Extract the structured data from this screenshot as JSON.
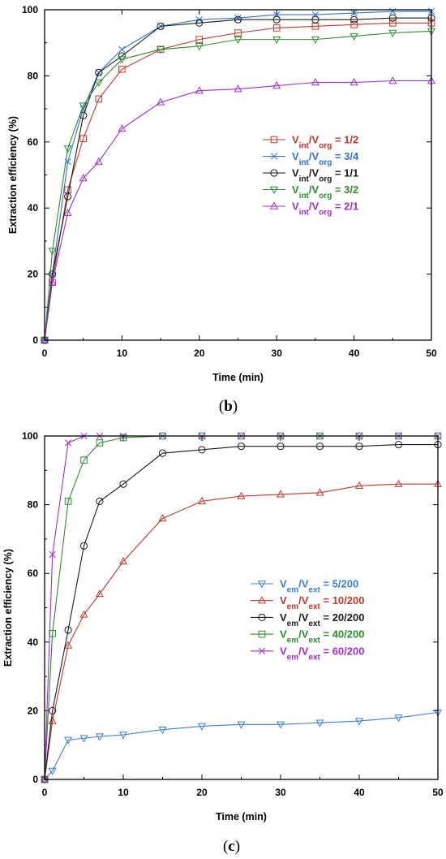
{
  "chart_data": [
    {
      "type": "line",
      "caption": "(b)",
      "xlabel": "Time (min)",
      "ylabel": "Extraction efficiency (%)",
      "xlim": [
        0,
        50
      ],
      "ylim": [
        0,
        100
      ],
      "xticks": [
        "0",
        "10",
        "20",
        "30",
        "40",
        "50"
      ],
      "yticks": [
        "0",
        "20",
        "40",
        "60",
        "80",
        "100"
      ],
      "legend_position": "center-right",
      "x": [
        0,
        1,
        3,
        5,
        7,
        10,
        15,
        20,
        25,
        30,
        35,
        40,
        45,
        50
      ],
      "series": [
        {
          "legend_main": "V",
          "legend_sub1": "int",
          "legend_mid": "/V",
          "legend_sub2": "org",
          "legend_value": " = 1/2",
          "color": "#c0392b",
          "marker": "square",
          "values": [
            0,
            17.5,
            45.5,
            61,
            73,
            82,
            88,
            91,
            93,
            94.5,
            95,
            95.5,
            96,
            96
          ]
        },
        {
          "legend_main": "V",
          "legend_sub1": "int",
          "legend_mid": "/V",
          "legend_sub2": "org",
          "legend_value": " = 3/4",
          "color": "#2f6fd6",
          "marker": "x",
          "values": [
            0,
            20,
            54,
            70,
            81,
            88,
            95,
            97,
            97.5,
            98.5,
            98.5,
            99,
            99.5,
            99.5
          ]
        },
        {
          "legend_main": "V",
          "legend_sub1": "int",
          "legend_mid": "/V",
          "legend_sub2": "org",
          "legend_value": " = 1/1",
          "color": "#1a1a1a",
          "marker": "circle",
          "values": [
            0,
            20,
            43.5,
            68,
            81,
            86,
            95,
            96,
            97,
            97,
            97,
            97,
            97.5,
            97.5
          ]
        },
        {
          "legend_main": "V",
          "legend_sub1": "int",
          "legend_mid": "/V",
          "legend_sub2": "org",
          "legend_value": " = 3/2",
          "color": "#2e8b2e",
          "marker": "triangle-down",
          "values": [
            0,
            27,
            58,
            71,
            78,
            85,
            88,
            89,
            91,
            91,
            91,
            92,
            93,
            93.5
          ]
        },
        {
          "legend_main": "V",
          "legend_sub1": "int",
          "legend_mid": "/V",
          "legend_sub2": "org",
          "legend_value": " = 2/1",
          "color": "#9b30d0",
          "marker": "triangle-up",
          "values": [
            0,
            17.5,
            38.5,
            49,
            54,
            64,
            72,
            75.5,
            76,
            77,
            78,
            78,
            78.5,
            78.5
          ]
        }
      ]
    },
    {
      "type": "line",
      "caption": "(c)",
      "xlabel": "Time (min)",
      "ylabel": "Extraction efficiency (%)",
      "xlim": [
        0,
        50
      ],
      "ylim": [
        0,
        100
      ],
      "xticks": [
        "0",
        "10",
        "20",
        "30",
        "40",
        "50"
      ],
      "yticks": [
        "0",
        "20",
        "40",
        "60",
        "80",
        "100"
      ],
      "legend_position": "center-right",
      "x": [
        0,
        1,
        3,
        5,
        7,
        10,
        15,
        20,
        25,
        30,
        35,
        40,
        45,
        50
      ],
      "series": [
        {
          "legend_main": "V",
          "legend_sub1": "em",
          "legend_mid": "/V",
          "legend_sub2": "ext",
          "legend_value": " = 5/200",
          "color": "#3a7fdc",
          "marker": "triangle-down",
          "values": [
            0,
            2.5,
            11.5,
            12,
            12.5,
            13,
            14.5,
            15.5,
            16,
            16,
            16.5,
            17,
            18,
            19.5
          ]
        },
        {
          "legend_main": "V",
          "legend_sub1": "em",
          "legend_mid": "/V",
          "legend_sub2": "ext",
          "legend_value": " = 10/200",
          "color": "#c0392b",
          "marker": "triangle-up",
          "values": [
            0,
            17,
            39,
            48,
            54,
            63.5,
            76,
            81,
            82.5,
            83,
            83.5,
            85.5,
            86,
            86
          ]
        },
        {
          "legend_main": "V",
          "legend_sub1": "em",
          "legend_mid": "/V",
          "legend_sub2": "ext",
          "legend_value": " = 20/200",
          "color": "#1a1a1a",
          "marker": "circle",
          "values": [
            0,
            20,
            43.5,
            68,
            81,
            86,
            95,
            96,
            97,
            97,
            97,
            97,
            97.5,
            97.5
          ]
        },
        {
          "legend_main": "V",
          "legend_sub1": "em",
          "legend_mid": "/V",
          "legend_sub2": "ext",
          "legend_value": " = 40/200",
          "color": "#2e8b2e",
          "marker": "square",
          "values": [
            0,
            42.5,
            81,
            93,
            98,
            99.5,
            100,
            100,
            100,
            100,
            100,
            100,
            100,
            100
          ]
        },
        {
          "legend_main": "V",
          "legend_sub1": "em",
          "legend_mid": "/V",
          "legend_sub2": "ext",
          "legend_value": " = 60/200",
          "color": "#9b30d0",
          "marker": "x",
          "values": [
            0,
            65.5,
            98,
            100,
            100,
            100,
            100,
            100,
            100,
            100,
            100,
            100,
            100,
            100
          ]
        }
      ]
    }
  ]
}
